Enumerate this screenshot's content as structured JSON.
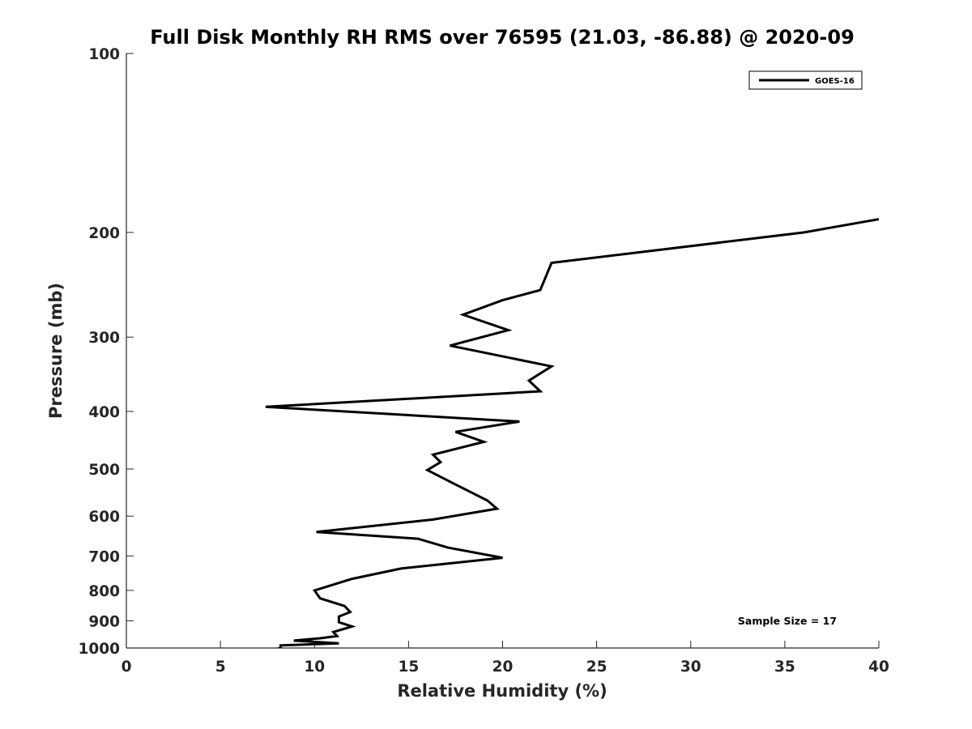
{
  "chart_data": {
    "type": "line",
    "title": "Full Disk Monthly RH RMS over 76595 (21.03, -86.88) @ 2020-09",
    "xlabel": "Relative Humidity (%)",
    "ylabel": "Pressure (mb)",
    "xlim": [
      0,
      40
    ],
    "ylim": [
      100,
      1000
    ],
    "y_scale": "log",
    "y_reversed": true,
    "x_ticks": [
      "0",
      "5",
      "10",
      "15",
      "20",
      "25",
      "30",
      "35",
      "40"
    ],
    "y_ticks": [
      "100",
      "200",
      "300",
      "400",
      "500",
      "600",
      "700",
      "800",
      "900",
      "1000"
    ],
    "grid": false,
    "legend_position": "top-right",
    "series": [
      {
        "name": "GOES-16",
        "color": "#000000",
        "points": [
          [
            40.0,
            190
          ],
          [
            36.0,
            200
          ],
          [
            22.6,
            225
          ],
          [
            22.0,
            250
          ],
          [
            20.0,
            260
          ],
          [
            17.9,
            275
          ],
          [
            20.3,
            292
          ],
          [
            17.2,
            310
          ],
          [
            22.6,
            336
          ],
          [
            21.4,
            355
          ],
          [
            22.0,
            370
          ],
          [
            7.4,
            393
          ],
          [
            20.9,
            416
          ],
          [
            17.5,
            433
          ],
          [
            19.0,
            450
          ],
          [
            16.3,
            473
          ],
          [
            16.7,
            487
          ],
          [
            16.0,
            502
          ],
          [
            17.3,
            527
          ],
          [
            19.2,
            565
          ],
          [
            19.7,
            583
          ],
          [
            16.3,
            608
          ],
          [
            10.1,
            638
          ],
          [
            15.5,
            655
          ],
          [
            17.1,
            678
          ],
          [
            20.0,
            705
          ],
          [
            14.6,
            735
          ],
          [
            12.0,
            765
          ],
          [
            10.0,
            800
          ],
          [
            10.3,
            825
          ],
          [
            11.6,
            850
          ],
          [
            11.9,
            870
          ],
          [
            11.3,
            885
          ],
          [
            11.3,
            905
          ],
          [
            12.0,
            920
          ],
          [
            11.0,
            940
          ],
          [
            11.2,
            955
          ],
          [
            10.3,
            963
          ],
          [
            8.9,
            972
          ],
          [
            11.3,
            982
          ],
          [
            8.2,
            990
          ],
          [
            8.2,
            1000
          ],
          [
            7.6,
            1010
          ]
        ]
      }
    ],
    "annotation": "Sample Size = 17"
  }
}
